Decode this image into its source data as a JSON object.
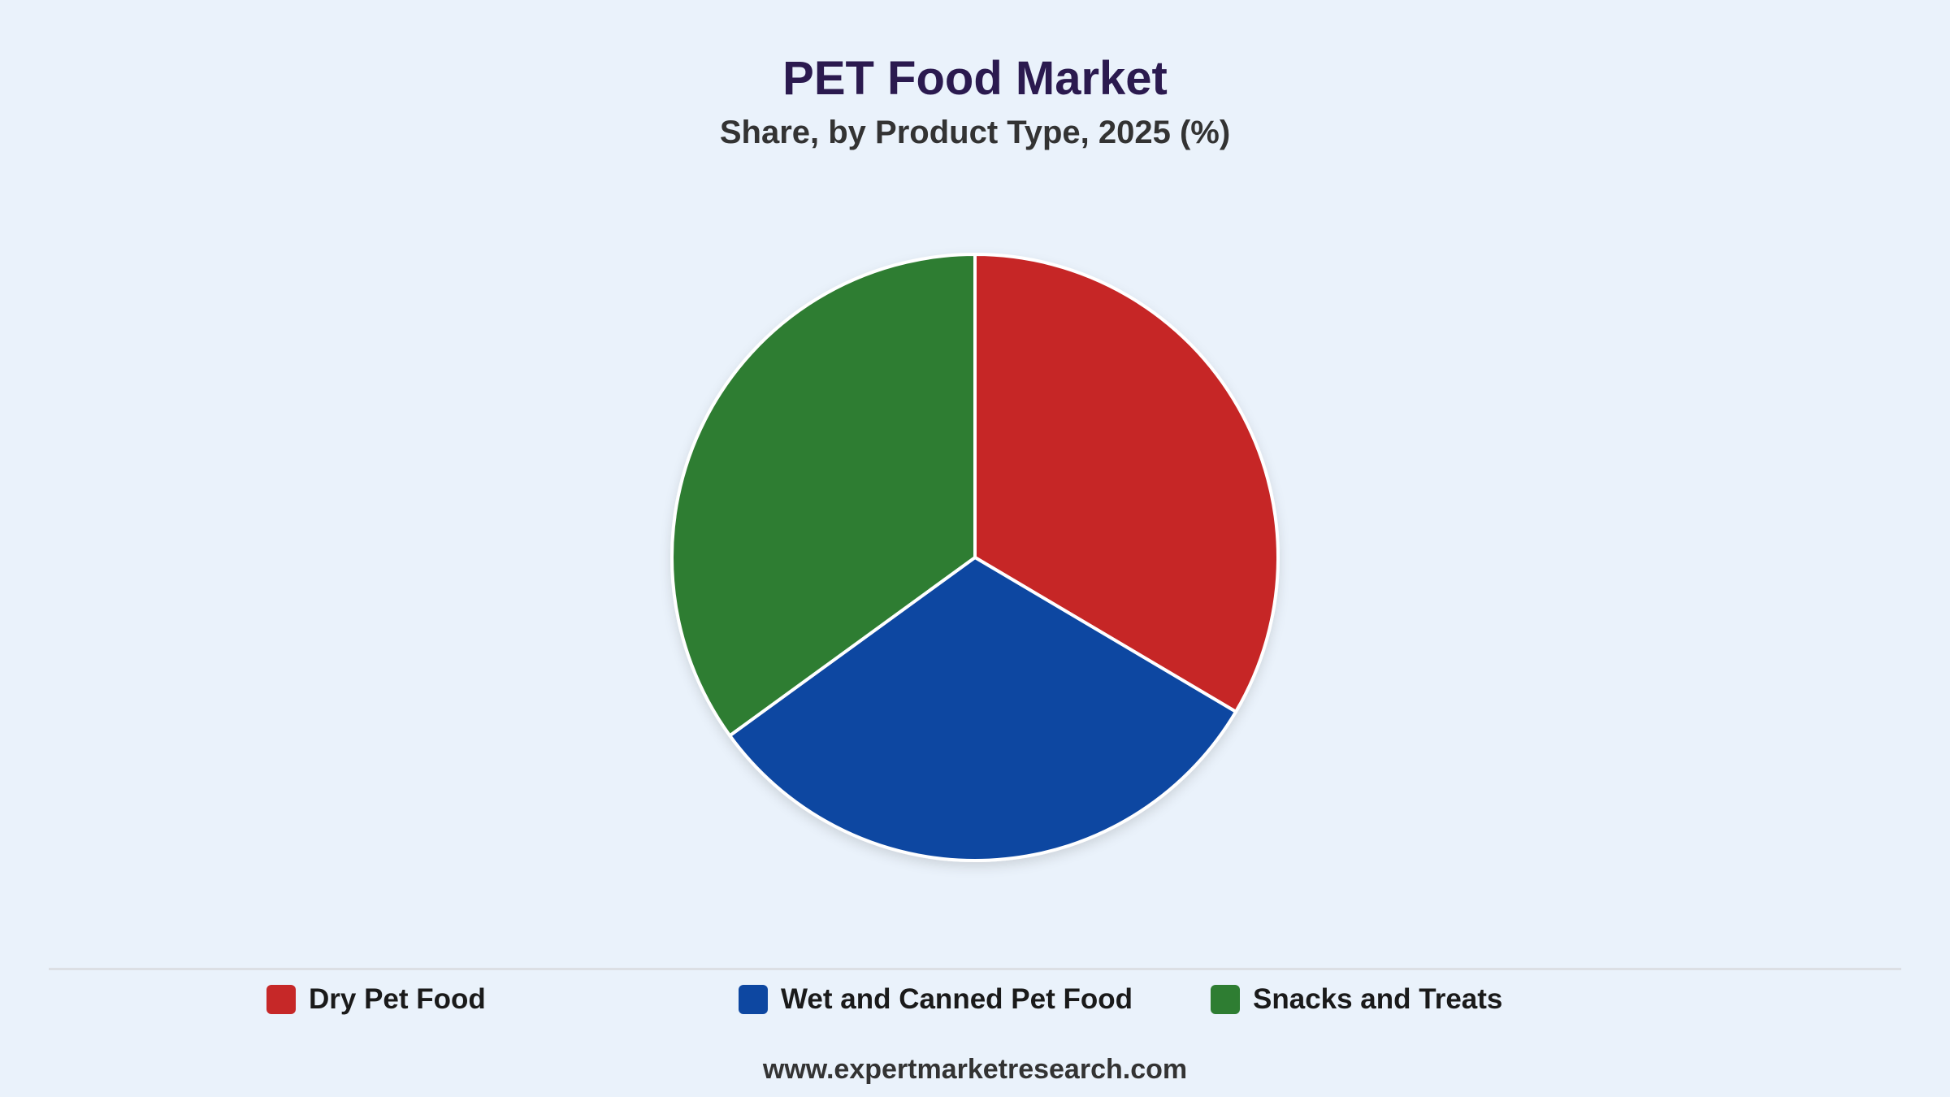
{
  "chart_data": {
    "type": "pie",
    "title": "PET Food Market",
    "subtitle": "Share, by Product Type, 2025 (%)",
    "categories": [
      "Dry Pet Food",
      "Wet and Canned Pet Food",
      "Snacks and Treats"
    ],
    "values": [
      33.5,
      31.5,
      35.0
    ],
    "colors": [
      "#c62828",
      "#0d47a1",
      "#2e7d32"
    ],
    "legend_position": "bottom"
  },
  "footer": {
    "source": "www.expertmarketresearch.com"
  }
}
